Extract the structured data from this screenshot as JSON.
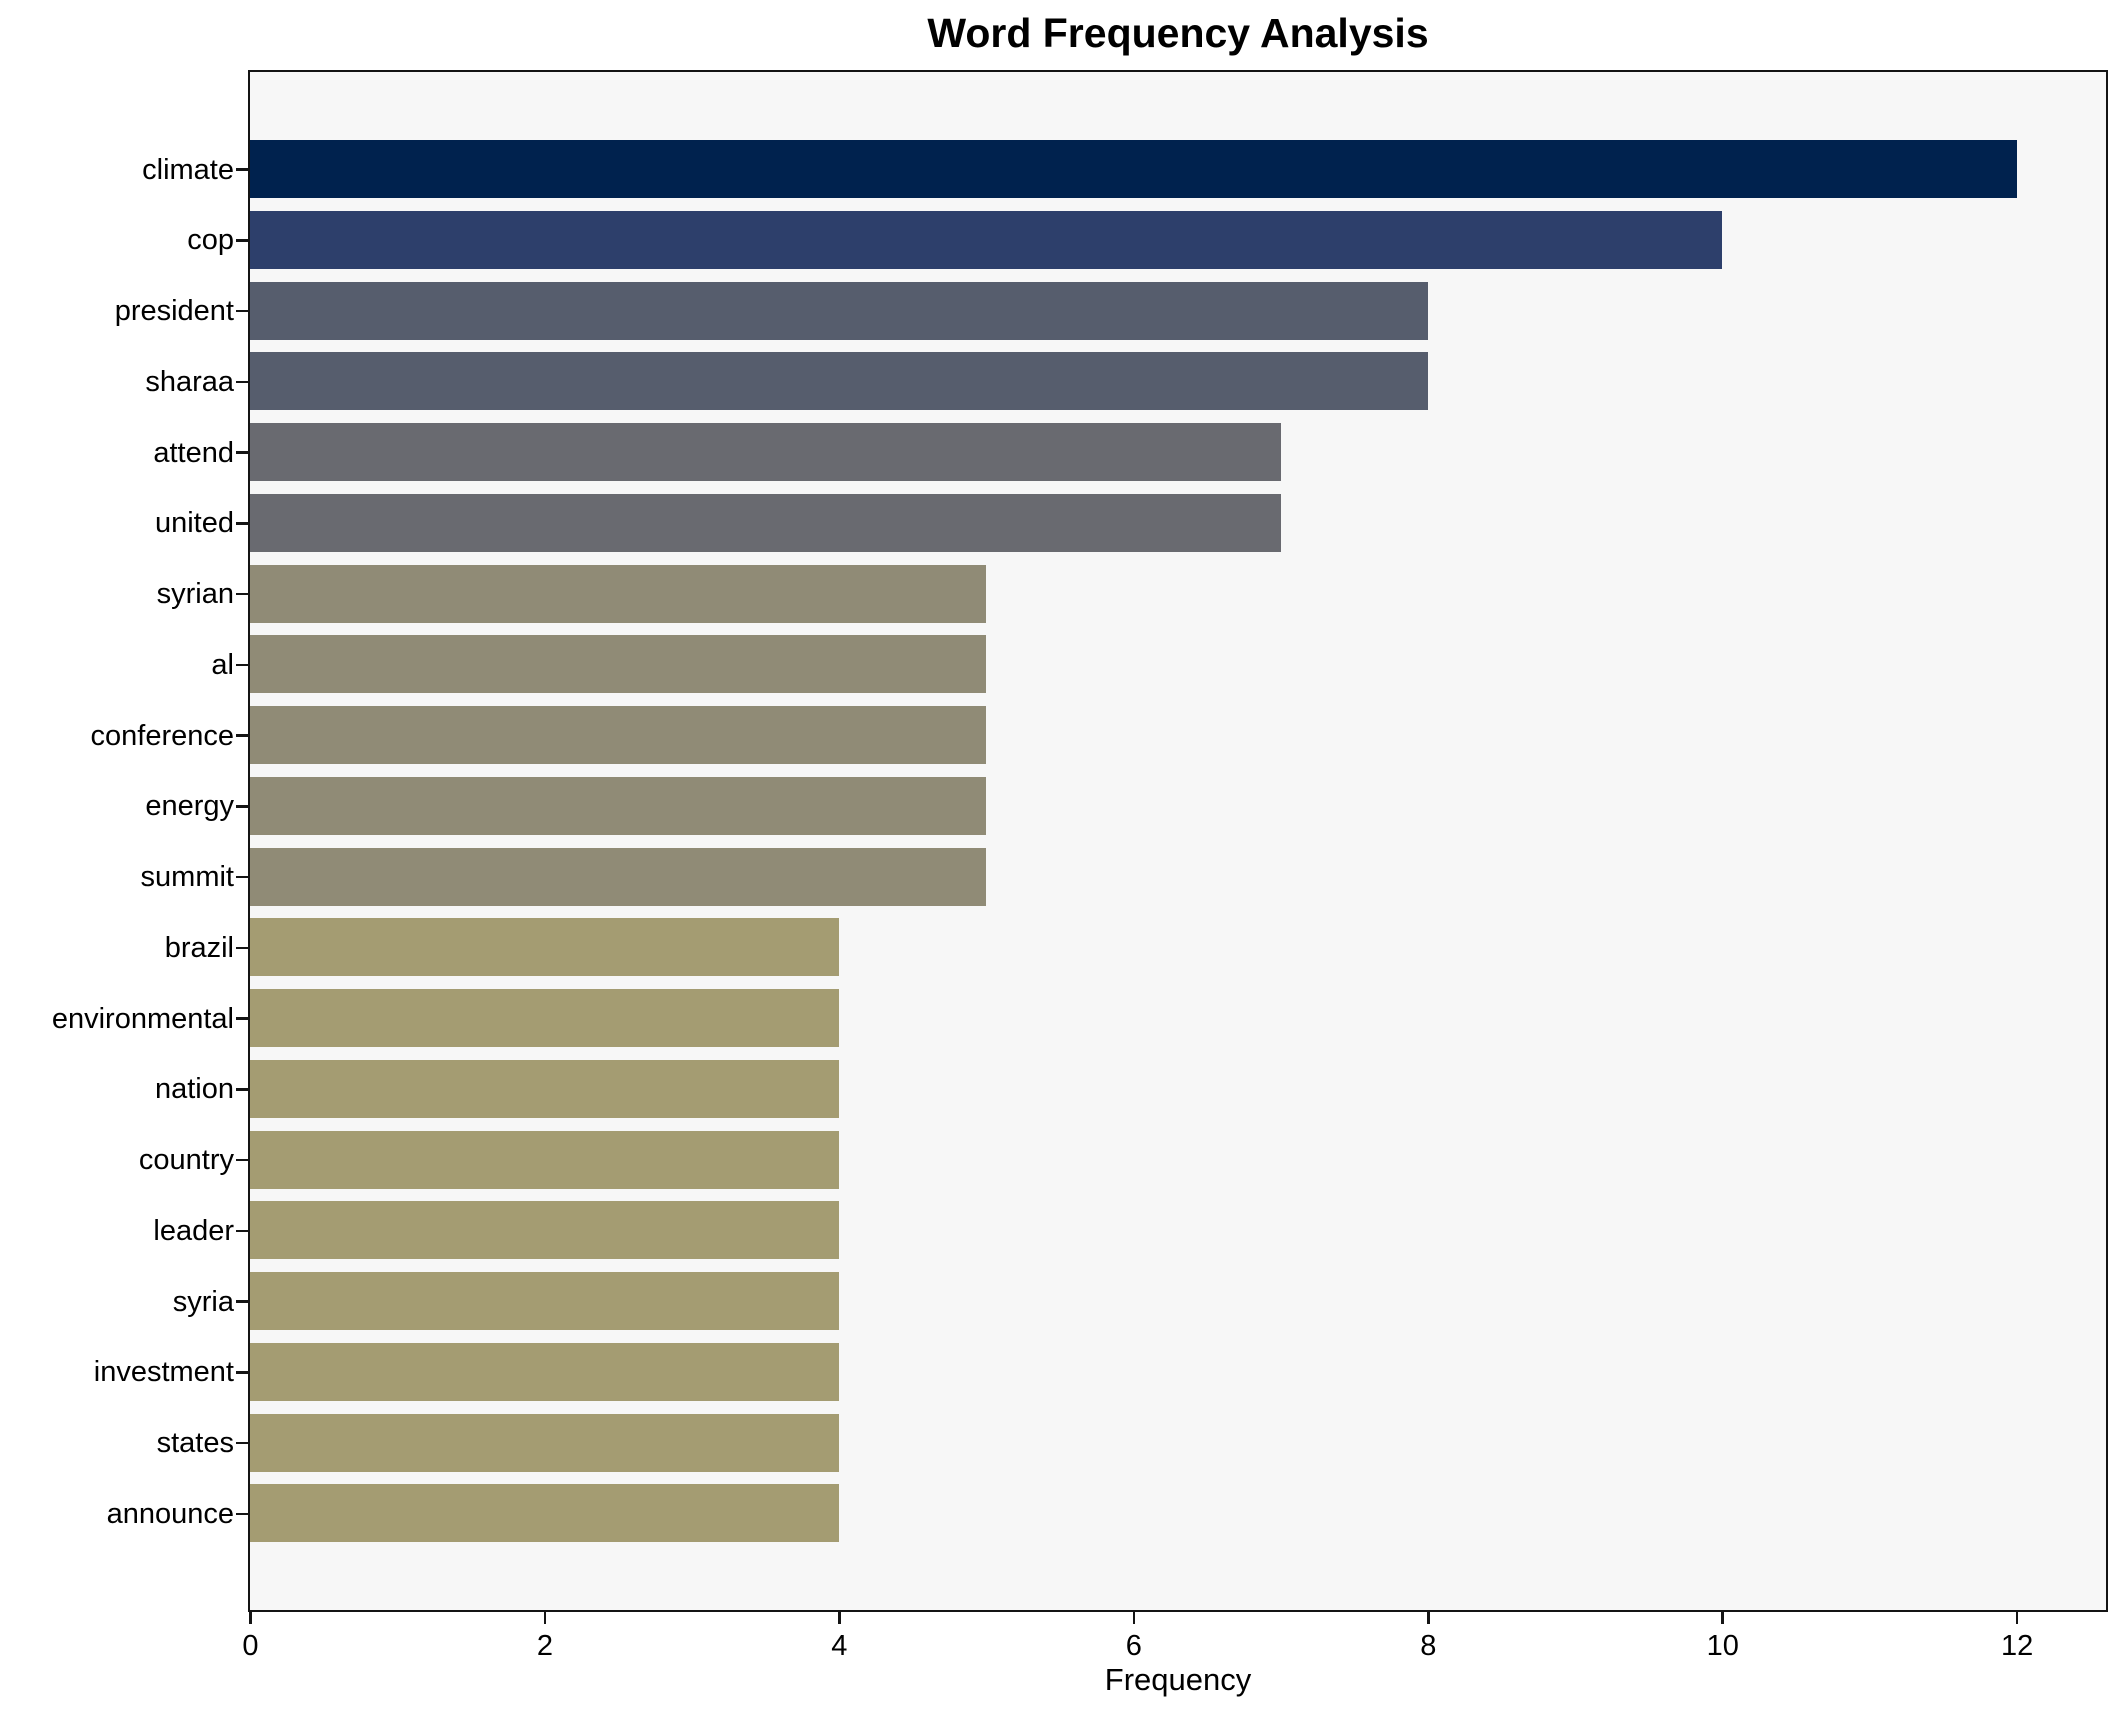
{
  "title": "Word Frequency Analysis",
  "chart_data": {
    "type": "bar",
    "orientation": "horizontal",
    "title": "Word Frequency Analysis",
    "xlabel": "Frequency",
    "ylabel": "",
    "categories": [
      "climate",
      "cop",
      "president",
      "sharaa",
      "attend",
      "united",
      "syrian",
      "al",
      "conference",
      "energy",
      "summit",
      "brazil",
      "environmental",
      "nation",
      "country",
      "leader",
      "syria",
      "investment",
      "states",
      "announce"
    ],
    "values": [
      12,
      10,
      8,
      8,
      7,
      7,
      5,
      5,
      5,
      5,
      5,
      4,
      4,
      4,
      4,
      4,
      4,
      4,
      4,
      4
    ],
    "bar_colors": [
      "#00224e",
      "#2d3f6b",
      "#565d6d",
      "#565d6d",
      "#696a70",
      "#696a70",
      "#908b76",
      "#908b76",
      "#908b76",
      "#908b76",
      "#908b76",
      "#a49c72",
      "#a49c72",
      "#a49c72",
      "#a49c72",
      "#a49c72",
      "#a49c72",
      "#a49c72",
      "#a49c72",
      "#a49c72"
    ],
    "x_ticks": [
      0,
      2,
      4,
      6,
      8,
      10,
      12
    ],
    "xlim": [
      0,
      12.6
    ],
    "grid": false,
    "legend": null,
    "plot_background": "#f7f7f7",
    "figure_background": "#ffffff",
    "frame_color": "#141414"
  }
}
